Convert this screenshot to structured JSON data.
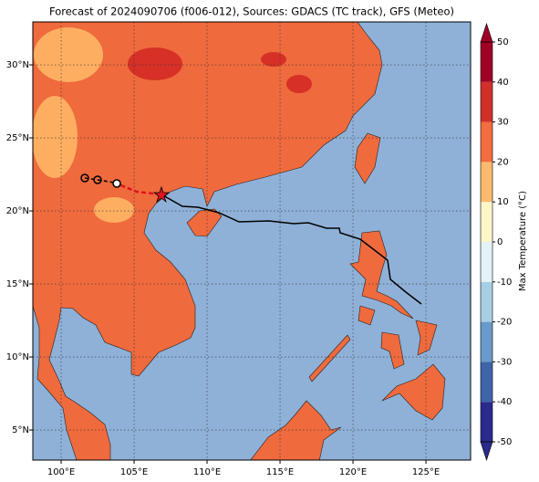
{
  "map": {
    "title": "Forecast of 2024090706 (f006-012), Sources: GDACS (TC track), GFS (Meteo)",
    "xlim": [
      98.06,
      128.06
    ],
    "ylim": [
      2.94,
      32.94
    ],
    "xticks": [
      {
        "value": 100,
        "label": "100°E"
      },
      {
        "value": 105,
        "label": "105°E"
      },
      {
        "value": 110,
        "label": "110°E"
      },
      {
        "value": 115,
        "label": "115°E"
      },
      {
        "value": 120,
        "label": "120°E"
      },
      {
        "value": 125,
        "label": "125°E"
      }
    ],
    "yticks": [
      {
        "value": 5,
        "label": "5°N"
      },
      {
        "value": 10,
        "label": "10°N"
      },
      {
        "value": 15,
        "label": "15°N"
      },
      {
        "value": 20,
        "label": "20°N"
      },
      {
        "value": 25,
        "label": "25°N"
      },
      {
        "value": 30,
        "label": "30°N"
      }
    ],
    "grid": true,
    "colorbar": {
      "label": "Max Temperature (°C)",
      "ticks": [
        -50,
        -40,
        -30,
        -20,
        -10,
        0,
        10,
        20,
        30,
        40,
        50
      ],
      "colors": [
        "#2a2a8c",
        "#3f64a8",
        "#6a9acb",
        "#a7cfe4",
        "#e3f2f7",
        "#fff6c8",
        "#fdba6e",
        "#f26d3f",
        "#d1302a",
        "#a00026"
      ]
    }
  }
}
